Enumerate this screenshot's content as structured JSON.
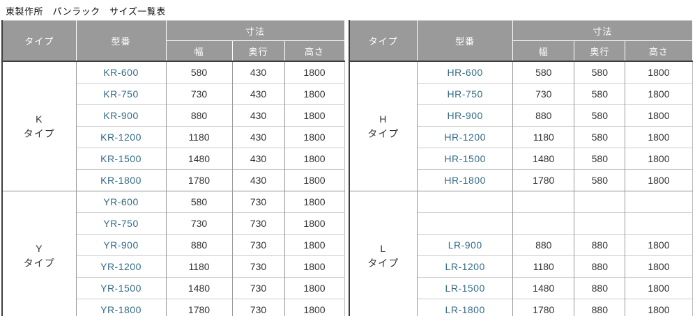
{
  "title": "東製作所　パンラック　サイズ一覧表",
  "columns": {
    "type": "タイプ",
    "model": "型番",
    "dims": "寸法",
    "width": "幅",
    "depth": "奥行",
    "height": "高さ"
  },
  "colors": {
    "header_bg": "#9a9a9a",
    "header_text": "#ffffff",
    "model_link": "#336b87",
    "dark_border": "#3d3d3d",
    "light_border": "#cccccc",
    "column_border": "#999999"
  },
  "tables": [
    {
      "name": "left",
      "groups": [
        {
          "type_letter": "K",
          "type_word": "タイプ",
          "rows": [
            {
              "model": "KR-600",
              "w": "580",
              "d": "430",
              "h": "1800"
            },
            {
              "model": "KR-750",
              "w": "730",
              "d": "430",
              "h": "1800"
            },
            {
              "model": "KR-900",
              "w": "880",
              "d": "430",
              "h": "1800"
            },
            {
              "model": "KR-1200",
              "w": "1180",
              "d": "430",
              "h": "1800"
            },
            {
              "model": "KR-1500",
              "w": "1480",
              "d": "430",
              "h": "1800"
            },
            {
              "model": "KR-1800",
              "w": "1780",
              "d": "430",
              "h": "1800"
            }
          ]
        },
        {
          "type_letter": "Y",
          "type_word": "タイプ",
          "rows": [
            {
              "model": "YR-600",
              "w": "580",
              "d": "730",
              "h": "1800"
            },
            {
              "model": "YR-750",
              "w": "730",
              "d": "730",
              "h": "1800"
            },
            {
              "model": "YR-900",
              "w": "880",
              "d": "730",
              "h": "1800"
            },
            {
              "model": "YR-1200",
              "w": "1180",
              "d": "730",
              "h": "1800"
            },
            {
              "model": "YR-1500",
              "w": "1480",
              "d": "730",
              "h": "1800"
            },
            {
              "model": "YR-1800",
              "w": "1780",
              "d": "730",
              "h": "1800"
            }
          ]
        }
      ]
    },
    {
      "name": "right",
      "groups": [
        {
          "type_letter": "H",
          "type_word": "タイプ",
          "rows": [
            {
              "model": "HR-600",
              "w": "580",
              "d": "580",
              "h": "1800"
            },
            {
              "model": "HR-750",
              "w": "730",
              "d": "580",
              "h": "1800"
            },
            {
              "model": "HR-900",
              "w": "880",
              "d": "580",
              "h": "1800"
            },
            {
              "model": "HR-1200",
              "w": "1180",
              "d": "580",
              "h": "1800"
            },
            {
              "model": "HR-1500",
              "w": "1480",
              "d": "580",
              "h": "1800"
            },
            {
              "model": "HR-1800",
              "w": "1780",
              "d": "580",
              "h": "1800"
            }
          ]
        },
        {
          "type_letter": "L",
          "type_word": "タイプ",
          "rows": [
            {
              "model": "",
              "w": "",
              "d": "",
              "h": ""
            },
            {
              "model": "",
              "w": "",
              "d": "",
              "h": ""
            },
            {
              "model": "LR-900",
              "w": "880",
              "d": "880",
              "h": "1800"
            },
            {
              "model": "LR-1200",
              "w": "1180",
              "d": "880",
              "h": "1800"
            },
            {
              "model": "LR-1500",
              "w": "1480",
              "d": "880",
              "h": "1800"
            },
            {
              "model": "LR-1800",
              "w": "1780",
              "d": "880",
              "h": "1800"
            }
          ]
        }
      ]
    }
  ]
}
